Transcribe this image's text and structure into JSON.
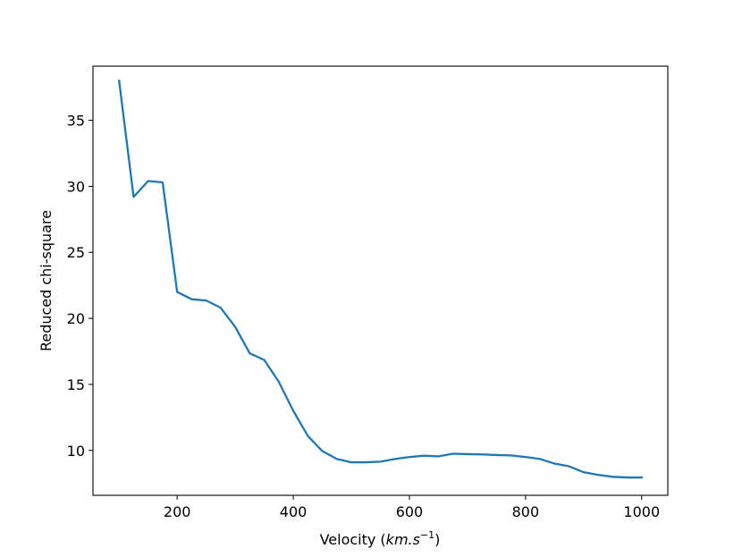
{
  "chart_data": {
    "type": "line",
    "title": "",
    "xlabel": "Velocity (",
    "xlabel_math": "km.s",
    "xlabel_exponent": "−1",
    "xlabel_close": ")",
    "ylabel": "Reduced chi-square",
    "xlim": [
      55,
      1045
    ],
    "ylim": [
      6.6,
      39.1
    ],
    "xticks": [
      200,
      400,
      600,
      800,
      1000
    ],
    "xtick_labels": [
      "200",
      "400",
      "600",
      "800",
      "1000"
    ],
    "yticks": [
      10,
      15,
      20,
      25,
      30,
      35
    ],
    "ytick_labels": [
      "10",
      "15",
      "20",
      "25",
      "30",
      "35"
    ],
    "grid": false,
    "series": [
      {
        "color": "#1f77b4",
        "x": [
          100,
          125,
          150,
          175,
          200,
          225,
          250,
          275,
          300,
          325,
          350,
          375,
          400,
          425,
          450,
          475,
          500,
          525,
          550,
          575,
          600,
          625,
          650,
          675,
          700,
          725,
          750,
          775,
          800,
          825,
          850,
          875,
          900,
          925,
          950,
          975,
          1000
        ],
        "y": [
          38.0,
          29.2,
          30.4,
          30.3,
          22.0,
          21.45,
          21.35,
          20.8,
          19.35,
          17.35,
          16.85,
          15.2,
          13.0,
          11.1,
          9.95,
          9.35,
          9.1,
          9.1,
          9.15,
          9.35,
          9.5,
          9.6,
          9.55,
          9.75,
          9.72,
          9.7,
          9.65,
          9.62,
          9.5,
          9.35,
          9.0,
          8.8,
          8.35,
          8.15,
          8.0,
          7.95,
          7.95
        ]
      }
    ]
  }
}
